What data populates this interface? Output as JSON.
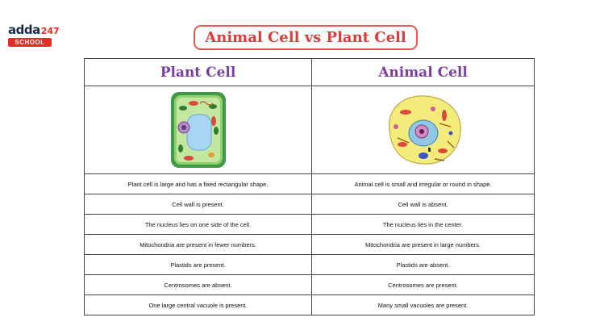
{
  "logo": {
    "brand": "adda",
    "number": "247",
    "tag": "SCHOOL"
  },
  "title": "Animal Cell vs Plant Cell",
  "columns": [
    "Plant Cell",
    "Animal Cell"
  ],
  "rows": [
    [
      "Plant cell is large and has a fixed rectangular shape.",
      "Animal cell is small and irregular or round in shape."
    ],
    [
      "Cell wall is present.",
      "Cell wall is absent."
    ],
    [
      "The nucleus lies on one side of the cell.",
      "The nucleus lies in the center."
    ],
    [
      "Mitochondria are present in fewer numbers.",
      "Mitochondria are present in large numbers."
    ],
    [
      "Plastids are present.",
      "Plastids are absent."
    ],
    [
      "Centrosomes are absent.",
      "Centrosomes are present."
    ],
    [
      "One large central vacuole is present.",
      "Many small vacuoles are present."
    ]
  ],
  "colors": {
    "title_text": "#e23a3a",
    "header_text": "#7a3ea1",
    "logo_red": "#e52d27"
  }
}
